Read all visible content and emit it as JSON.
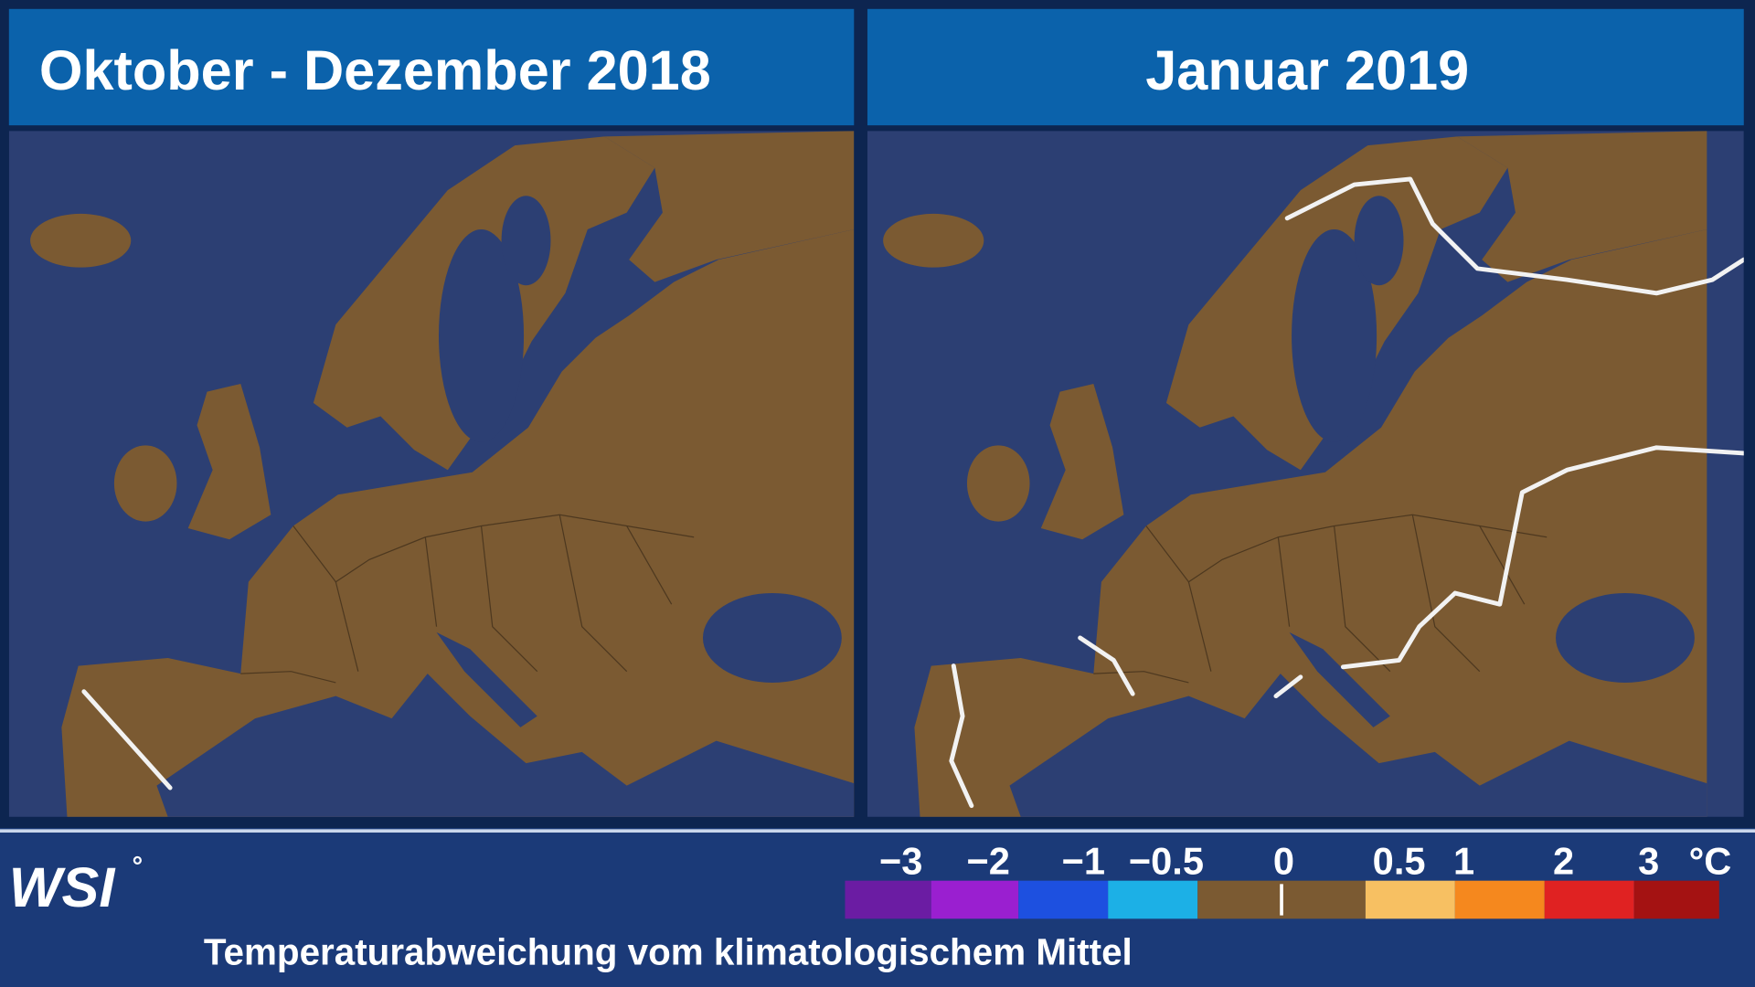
{
  "panels": [
    {
      "title": "Oktober - Dezember 2018"
    },
    {
      "title": "Januar 2019"
    }
  ],
  "legend": {
    "ticks": [
      "−3",
      "−2",
      "−1",
      "−0.5",
      "0",
      "0.5",
      "1",
      "2",
      "3"
    ],
    "unit": "°C",
    "colors": [
      "#6b1ca3",
      "#9a1fd0",
      "#1d50e0",
      "#1cb0e6",
      "#7b5a32",
      "#f7c062",
      "#f5881e",
      "#e02222",
      "#a41212"
    ]
  },
  "footer": {
    "logo": "WSI",
    "logo_mark": "°",
    "caption": "Temperaturabweichung vom klimatologischem Mittel"
  }
}
